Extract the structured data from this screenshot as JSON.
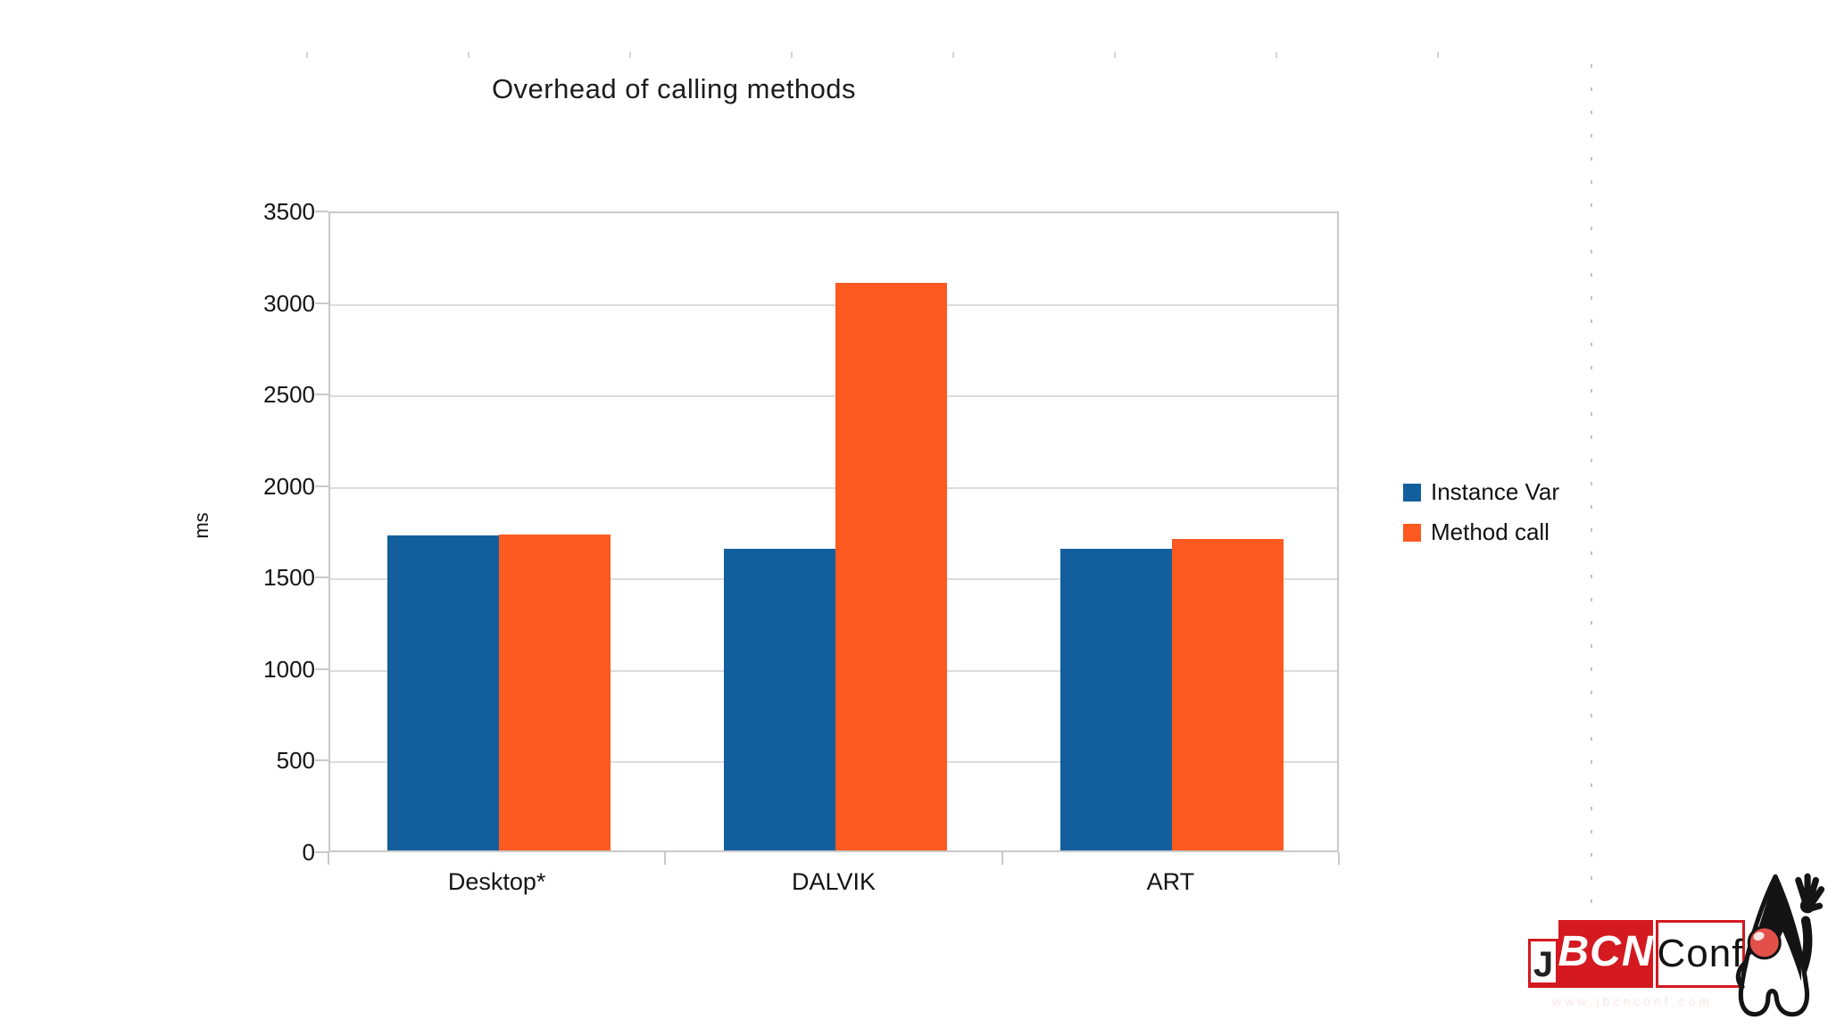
{
  "chart_data": {
    "type": "bar",
    "title": "Overhead of calling methods",
    "xlabel": "",
    "ylabel": "ms",
    "categories": [
      "Desktop*",
      "DALVIK",
      "ART"
    ],
    "series": [
      {
        "name": "Instance Var",
        "color": "#135F9E",
        "values": [
          1720,
          1650,
          1650
        ]
      },
      {
        "name": "Method call",
        "color": "#FC5A21",
        "values": [
          1725,
          3100,
          1700
        ]
      }
    ],
    "ylim": [
      0,
      3500
    ],
    "yticks": [
      0,
      500,
      1000,
      1500,
      2000,
      2500,
      3000,
      3500
    ],
    "grid": true,
    "legend_position": "right",
    "unit": "ms"
  },
  "decor": {
    "ruler_tick_count": 8,
    "grid_color": "#dcdcdc",
    "frame_color": "#c9c9c9"
  },
  "logo": {
    "j": "J",
    "bcn": "BCN",
    "conf": "Conf",
    "tagline": "www.jbcnconf.com",
    "red": "#d41920"
  }
}
